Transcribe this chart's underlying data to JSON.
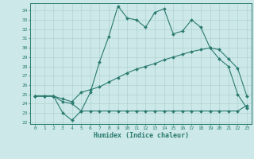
{
  "xlabel": "Humidex (Indice chaleur)",
  "background_color": "#cce8e8",
  "grid_color": "#aacccc",
  "line_color": "#2a7a70",
  "xlim": [
    -0.5,
    23.5
  ],
  "ylim": [
    21.8,
    34.8
  ],
  "yticks": [
    22,
    23,
    24,
    25,
    26,
    27,
    28,
    29,
    30,
    31,
    32,
    33,
    34
  ],
  "xticks": [
    0,
    1,
    2,
    3,
    4,
    5,
    6,
    7,
    8,
    9,
    10,
    11,
    12,
    13,
    14,
    15,
    16,
    17,
    18,
    19,
    20,
    21,
    22,
    23
  ],
  "line1_x": [
    0,
    1,
    2,
    3,
    4,
    5,
    6,
    7,
    8,
    9,
    10,
    11,
    12,
    13,
    14,
    15,
    16,
    17,
    18,
    19,
    20,
    21,
    22,
    23
  ],
  "line1_y": [
    24.8,
    24.8,
    24.8,
    23.0,
    22.2,
    23.2,
    25.2,
    28.5,
    31.2,
    34.5,
    33.2,
    33.0,
    32.2,
    33.8,
    34.2,
    31.5,
    31.8,
    33.0,
    32.2,
    30.0,
    28.8,
    28.0,
    25.0,
    23.5
  ],
  "line2_x": [
    0,
    1,
    2,
    3,
    4,
    5,
    6,
    7,
    8,
    9,
    10,
    11,
    12,
    13,
    14,
    15,
    16,
    17,
    18,
    19,
    20,
    21,
    22,
    23
  ],
  "line2_y": [
    24.8,
    24.8,
    24.8,
    24.5,
    24.2,
    25.2,
    25.5,
    25.8,
    26.3,
    26.8,
    27.3,
    27.7,
    28.0,
    28.3,
    28.7,
    29.0,
    29.3,
    29.6,
    29.8,
    30.0,
    29.8,
    28.8,
    27.8,
    24.8
  ],
  "line3_x": [
    0,
    1,
    2,
    3,
    4,
    5,
    6,
    7,
    8,
    9,
    10,
    11,
    12,
    13,
    14,
    15,
    16,
    17,
    18,
    19,
    20,
    21,
    22,
    23
  ],
  "line3_y": [
    24.8,
    24.8,
    24.8,
    24.2,
    24.0,
    23.2,
    23.2,
    23.2,
    23.2,
    23.2,
    23.2,
    23.2,
    23.2,
    23.2,
    23.2,
    23.2,
    23.2,
    23.2,
    23.2,
    23.2,
    23.2,
    23.2,
    23.2,
    23.8
  ]
}
